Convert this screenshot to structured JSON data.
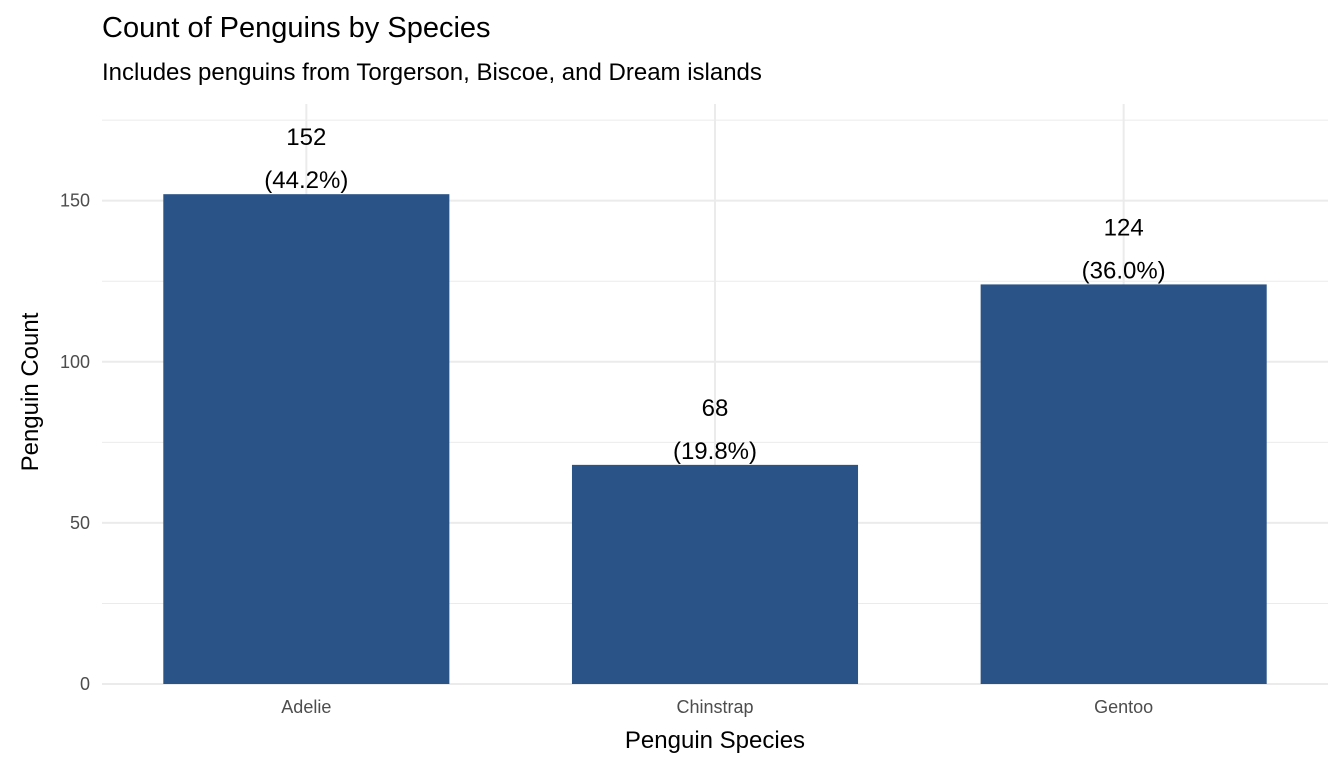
{
  "chart_data": {
    "type": "bar",
    "title": "Count of Penguins by Species",
    "subtitle": "Includes penguins from Torgerson, Biscoe, and Dream islands",
    "xlabel": "Penguin Species",
    "ylabel": "Penguin Count",
    "categories": [
      "Adelie",
      "Chinstrap",
      "Gentoo"
    ],
    "values": [
      152,
      68,
      124
    ],
    "data_labels": [
      {
        "count": "152",
        "percent": "(44.2%)"
      },
      {
        "count": "68",
        "percent": "(19.8%)"
      },
      {
        "count": "124",
        "percent": "(36.0%)"
      }
    ],
    "yticks": [
      0,
      50,
      100,
      150
    ],
    "ylim": [
      0,
      180
    ],
    "grid": true,
    "legend": "none",
    "bar_color": "#2A5387",
    "grid_color": "#EBEBEB"
  }
}
